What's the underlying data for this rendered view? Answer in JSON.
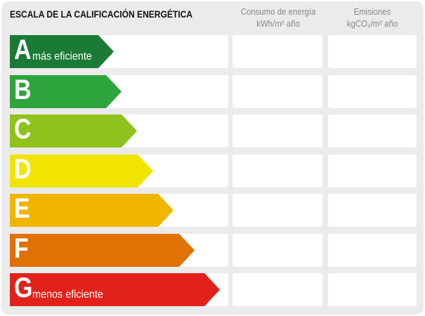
{
  "title": "ESCALA DE LA CALIFICACIÓN ENERGÉTICA",
  "columns": [
    {
      "line1": "Consumo de energía",
      "line2": "kWh/m² año"
    },
    {
      "line1": "Emisiones",
      "line2": "kgCO₂/m² año"
    }
  ],
  "ratings": [
    {
      "letter": "A",
      "label": "más eficiente",
      "color": "#1b7a36"
    },
    {
      "letter": "B",
      "label": "",
      "color": "#2ea43c"
    },
    {
      "letter": "C",
      "label": "",
      "color": "#8fc21c"
    },
    {
      "letter": "D",
      "label": "",
      "color": "#f1e400"
    },
    {
      "letter": "E",
      "label": "",
      "color": "#f1b500"
    },
    {
      "letter": "F",
      "label": "",
      "color": "#e07104"
    },
    {
      "letter": "G",
      "label": "menos eficiente",
      "color": "#e1221a"
    }
  ]
}
